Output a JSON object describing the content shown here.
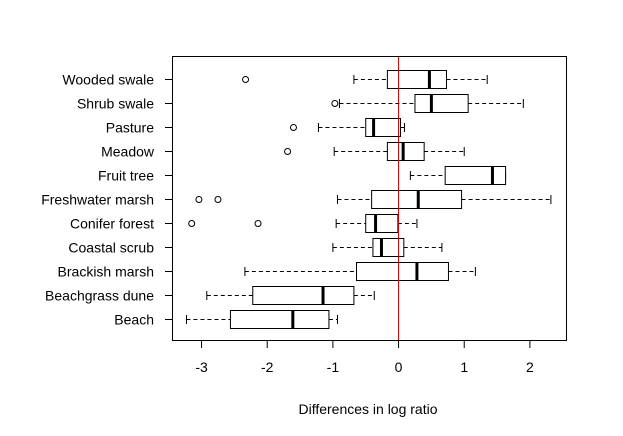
{
  "chart_data": {
    "type": "boxplot",
    "orientation": "horizontal",
    "title": "",
    "xlabel": "Differences in log ratio",
    "ylabel": "",
    "xlim": [
      -3.45,
      2.55
    ],
    "xticks": [
      -3,
      -2,
      -1,
      0,
      1,
      2
    ],
    "xtick_labels": [
      "-3",
      "-2",
      "-1",
      "0",
      "1",
      "2"
    ],
    "reference_line": {
      "x": 0,
      "color": "#cc0000"
    },
    "grid": false,
    "categories": [
      "Wooded swale",
      "Shrub swale",
      "Pasture",
      "Meadow",
      "Fruit tree",
      "Freshwater marsh",
      "Conifer forest",
      "Coastal scrub",
      "Brackish marsh",
      "Beachgrass dune",
      "Beach"
    ],
    "boxes": [
      {
        "category": "Wooded swale",
        "whisker_low": -0.68,
        "q1": -0.17,
        "median": 0.47,
        "q3": 0.73,
        "whisker_high": 1.35,
        "outliers": [
          -2.33
        ]
      },
      {
        "category": "Shrub swale",
        "whisker_low": -0.9,
        "q1": 0.25,
        "median": 0.5,
        "q3": 1.06,
        "whisker_high": 1.9,
        "outliers": [
          -0.97
        ]
      },
      {
        "category": "Pasture",
        "whisker_low": -1.22,
        "q1": -0.5,
        "median": -0.38,
        "q3": 0.03,
        "whisker_high": 0.09,
        "outliers": [
          -1.6
        ]
      },
      {
        "category": "Meadow",
        "whisker_low": -0.98,
        "q1": -0.17,
        "median": 0.07,
        "q3": 0.39,
        "whisker_high": 1.0,
        "outliers": [
          -1.69
        ]
      },
      {
        "category": "Fruit tree",
        "whisker_low": 0.18,
        "q1": 0.71,
        "median": 1.43,
        "q3": 1.63,
        "whisker_high": 1.63,
        "outliers": []
      },
      {
        "category": "Freshwater marsh",
        "whisker_low": -0.93,
        "q1": -0.41,
        "median": 0.3,
        "q3": 0.96,
        "whisker_high": 2.32,
        "outliers": [
          -3.04,
          -2.75
        ]
      },
      {
        "category": "Conifer forest",
        "whisker_low": -0.95,
        "q1": -0.5,
        "median": -0.35,
        "q3": -0.01,
        "whisker_high": 0.28,
        "outliers": [
          -3.15,
          -2.14
        ]
      },
      {
        "category": "Coastal scrub",
        "whisker_low": -1.0,
        "q1": -0.39,
        "median": -0.26,
        "q3": 0.08,
        "whisker_high": 0.66,
        "outliers": []
      },
      {
        "category": "Brackish marsh",
        "whisker_low": -2.34,
        "q1": -0.64,
        "median": 0.28,
        "q3": 0.76,
        "whisker_high": 1.17,
        "outliers": []
      },
      {
        "category": "Beachgrass dune",
        "whisker_low": -2.92,
        "q1": -2.22,
        "median": -1.15,
        "q3": -0.68,
        "whisker_high": -0.37,
        "outliers": []
      },
      {
        "category": "Beach",
        "whisker_low": -3.23,
        "q1": -2.56,
        "median": -1.61,
        "q3": -1.06,
        "whisker_high": -0.93,
        "outliers": []
      }
    ]
  }
}
